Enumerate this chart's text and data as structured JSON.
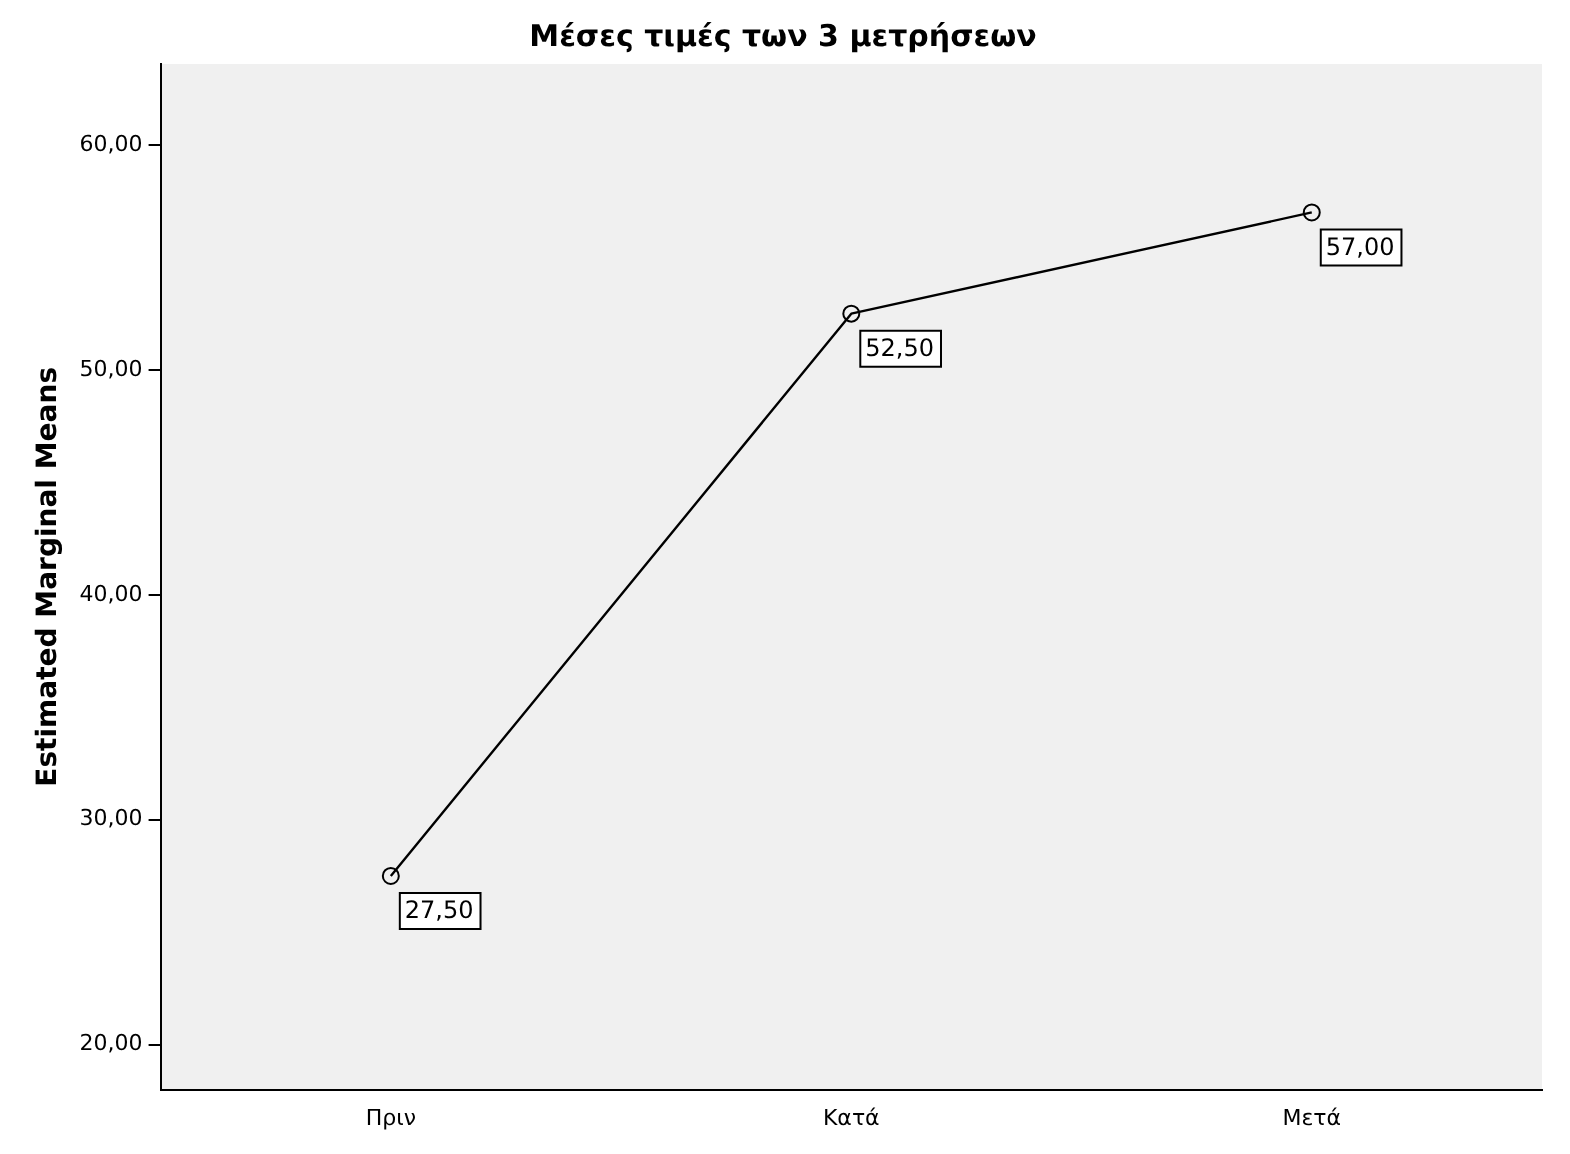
{
  "chart_data": {
    "type": "line",
    "title": "Μέσες τιμές των 3 μετρήσεων",
    "ylabel": "Estimated Marginal Means",
    "categories": [
      "Πριν",
      "Κατά",
      "Μετά"
    ],
    "series": [
      {
        "color": "#000000",
        "values": [
          27.5,
          52.5,
          57
        ],
        "value_labels": [
          "27,50",
          "52,50",
          "57,00"
        ]
      }
    ],
    "ylim": [
      18,
      63.6
    ],
    "yticks": [
      {
        "value": 20,
        "label": "20,00"
      },
      {
        "value": 30,
        "label": "30,00"
      },
      {
        "value": 40,
        "label": "40,00"
      },
      {
        "value": 50,
        "label": "50,00"
      },
      {
        "value": 60,
        "label": "60,00"
      }
    ],
    "grid": false,
    "legend": false,
    "marker": "circle",
    "line_style": "solid"
  }
}
